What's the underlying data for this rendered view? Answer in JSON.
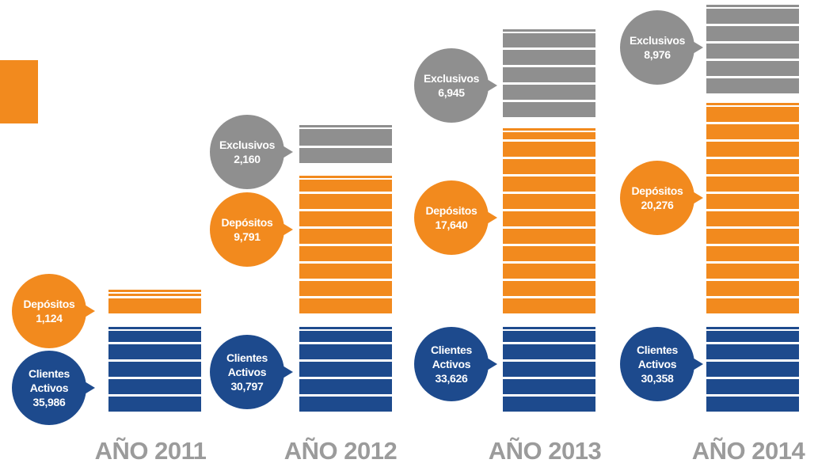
{
  "chart_data": {
    "type": "bar",
    "categories": [
      "AÑO 2011",
      "AÑO 2012",
      "AÑO 2013",
      "AÑO 2014"
    ],
    "series": [
      {
        "name": "Clientes Activos",
        "color": "#1d4a8d",
        "values": [
          35986,
          30797,
          33626,
          30358
        ],
        "value_labels": [
          "35,986",
          "30,797",
          "33,626",
          "30,358"
        ]
      },
      {
        "name": "Depósitos",
        "color": "#f28a1e",
        "values": [
          1124,
          9791,
          17640,
          20276
        ],
        "value_labels": [
          "1,124",
          "9,791",
          "17,640",
          "20,276"
        ]
      },
      {
        "name": "Exclusivos",
        "color": "#8f8f8f",
        "values": [
          null,
          2160,
          6945,
          8976
        ],
        "value_labels": [
          null,
          "2,160",
          "6,945",
          "8,976"
        ]
      }
    ]
  }
}
